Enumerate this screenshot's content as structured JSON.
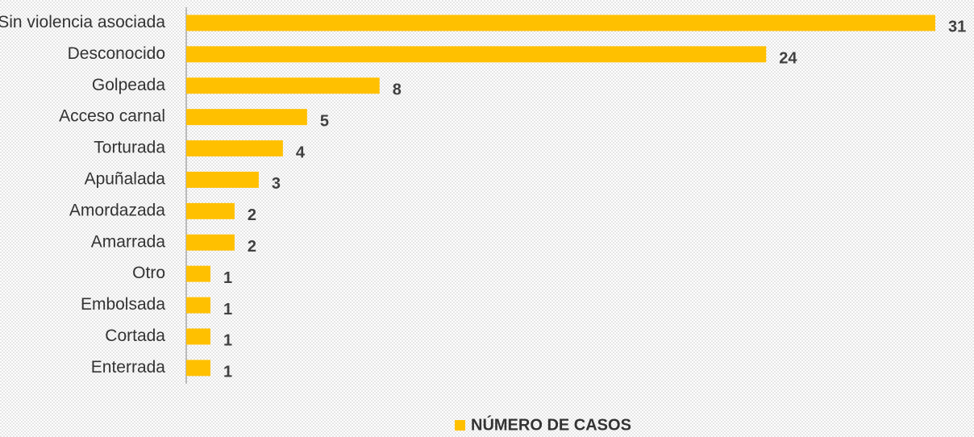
{
  "chart_data": {
    "type": "bar",
    "orientation": "horizontal",
    "categories": [
      "Sin violencia asociada",
      "Desconocido",
      "Golpeada",
      "Acceso carnal",
      "Torturada",
      "Apuñalada",
      "Amordazada",
      "Amarrada",
      "Otro",
      "Embolsada",
      "Cortada",
      "Enterrada"
    ],
    "series": [
      {
        "name": "NÚMERO DE CASOS",
        "color": "#ffc000",
        "values": [
          31,
          24,
          8,
          5,
          4,
          3,
          2,
          2,
          1,
          1,
          1,
          1
        ]
      }
    ],
    "legend": "bottom"
  }
}
